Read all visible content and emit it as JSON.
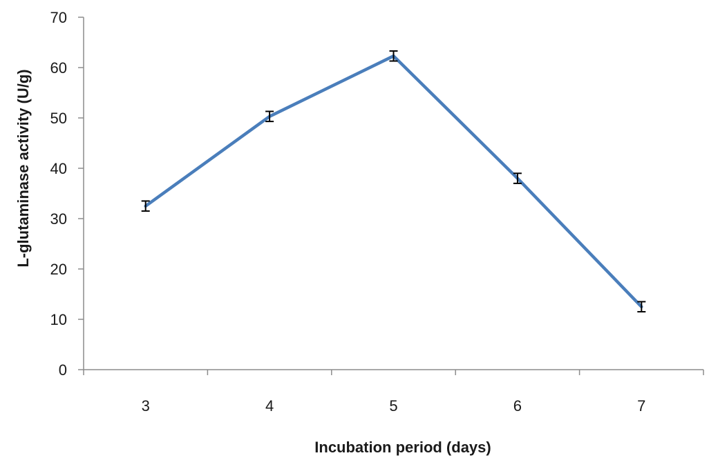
{
  "chart_data": {
    "type": "line",
    "title": "",
    "xlabel": "Incubation period (days)",
    "ylabel": "L-glutaminase activity (U/g)",
    "categories": [
      "3",
      "4",
      "5",
      "6",
      "7"
    ],
    "series": [
      {
        "values": [
          32.5,
          50.3,
          62.3,
          38.0,
          12.5
        ],
        "errors": [
          1.0,
          1.0,
          1.0,
          1.0,
          1.0
        ],
        "color": "#4a7ebb"
      }
    ],
    "ylim": [
      0,
      70
    ],
    "yticks": [
      0,
      10,
      20,
      30,
      40,
      50,
      60,
      70
    ],
    "grid": false,
    "legend": "none"
  }
}
